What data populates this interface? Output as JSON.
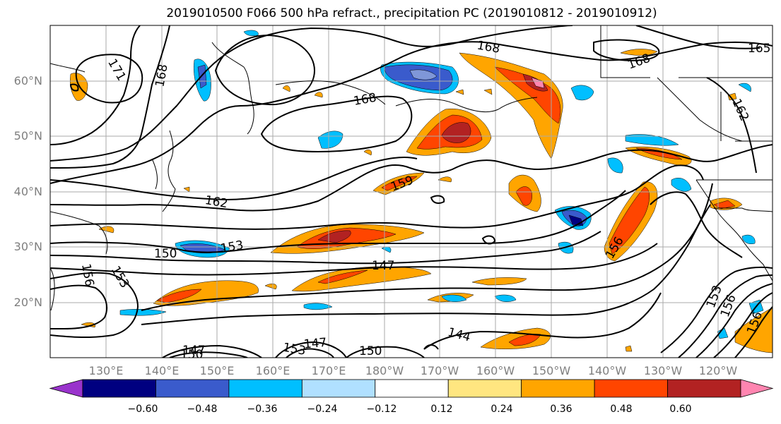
{
  "title": "2019010500 F066 500 hPa refract., precipitation PC (2019010812 - 2019010912)",
  "map": {
    "lat_labels": [
      "60°N",
      "50°N",
      "40°N",
      "30°N",
      "20°N"
    ],
    "lon_labels": [
      "130°E",
      "140°E",
      "150°E",
      "160°E",
      "170°E",
      "180°W",
      "170°W",
      "160°W",
      "150°W",
      "140°W",
      "130°W",
      "120°W"
    ],
    "contour_labels": [
      "171",
      "168",
      "168",
      "168",
      "168",
      "165",
      "162",
      "162",
      "159",
      "156",
      "153",
      "153",
      "150",
      "150",
      "147",
      "147",
      "147",
      "144",
      "156",
      "153",
      "156",
      "153",
      "156",
      "150"
    ]
  },
  "colorbar": {
    "ticks": [
      "−0.60",
      "−0.48",
      "−0.36",
      "−0.24",
      "−0.12",
      "0.12",
      "0.24",
      "0.36",
      "0.48",
      "0.60"
    ],
    "colors": [
      "#9933cc",
      "#000080",
      "#3a5bcc",
      "#00bfff",
      "#b0e0ff",
      "#ffffff",
      "#ffe680",
      "#ffa500",
      "#ff4500",
      "#b22222",
      "#ff85b0"
    ]
  }
}
